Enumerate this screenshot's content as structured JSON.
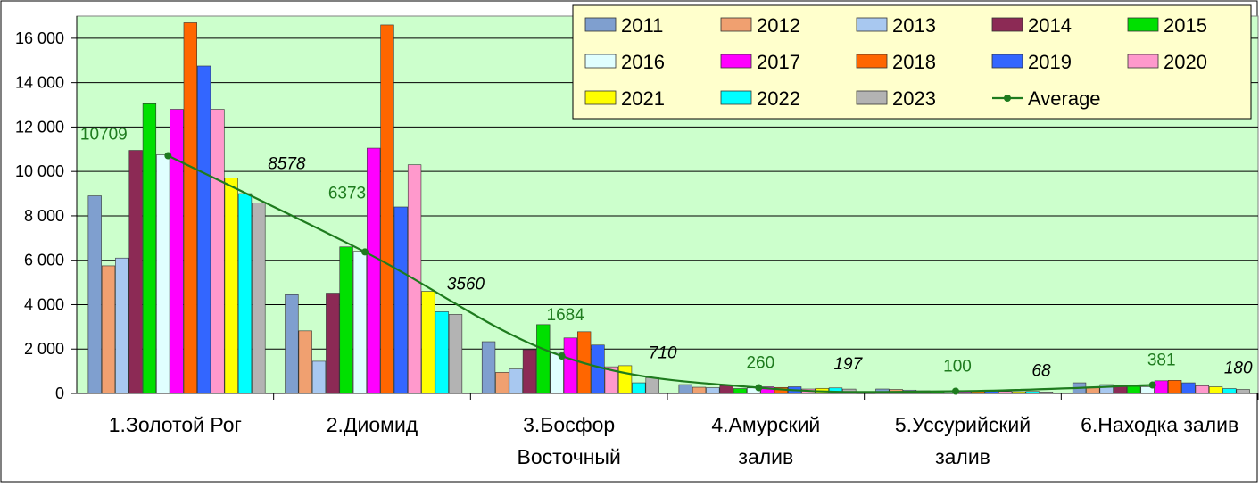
{
  "chart_data": {
    "type": "bar",
    "title": "",
    "xlabel": "",
    "ylabel": "",
    "ylim": [
      0,
      17000
    ],
    "yticks": [
      0,
      2000,
      4000,
      6000,
      8000,
      10000,
      12000,
      14000,
      16000
    ],
    "ytick_labels": [
      "0",
      "2 000",
      "4 000",
      "6 000",
      "8 000",
      "10 000",
      "12 000",
      "14 000",
      "16 000"
    ],
    "grid": true,
    "legend_position": "top-right",
    "categories": [
      [
        "1.Золотой  Рог"
      ],
      [
        "2.Диомид"
      ],
      [
        "3.Босфор",
        "Восточный"
      ],
      [
        "4.Амурский",
        "залив"
      ],
      [
        "5.Уссурийский",
        "залив"
      ],
      [
        "6.Находка  залив"
      ]
    ],
    "series": [
      {
        "name": "2011",
        "color": "#7f9fcf",
        "values": [
          8900,
          4450,
          2330,
          400,
          200,
          480
        ]
      },
      {
        "name": "2012",
        "color": "#f0a070",
        "values": [
          5750,
          2820,
          950,
          280,
          180,
          290
        ]
      },
      {
        "name": "2013",
        "color": "#a8c8f0",
        "values": [
          6100,
          1450,
          1100,
          260,
          150,
          400
        ]
      },
      {
        "name": "2014",
        "color": "#8c2a55",
        "values": [
          10950,
          4520,
          1970,
          350,
          120,
          380
        ]
      },
      {
        "name": "2015",
        "color": "#00e000",
        "values": [
          13050,
          6600,
          3100,
          220,
          90,
          320
        ]
      },
      {
        "name": "2016",
        "color": "#e0ffff",
        "values": [
          10750,
          6400,
          1850,
          250,
          80,
          300
        ]
      },
      {
        "name": "2017",
        "color": "#ff00ff",
        "values": [
          12800,
          11050,
          2500,
          300,
          100,
          570
        ]
      },
      {
        "name": "2018",
        "color": "#ff6600",
        "values": [
          16700,
          16600,
          2780,
          270,
          110,
          590
        ]
      },
      {
        "name": "2019",
        "color": "#3366ff",
        "values": [
          14750,
          8400,
          2180,
          300,
          120,
          480
        ]
      },
      {
        "name": "2020",
        "color": "#ff99cc",
        "values": [
          12800,
          10300,
          1200,
          200,
          90,
          350
        ]
      },
      {
        "name": "2021",
        "color": "#ffff00",
        "values": [
          9700,
          4600,
          1250,
          230,
          80,
          300
        ]
      },
      {
        "name": "2022",
        "color": "#00ffff",
        "values": [
          9000,
          3680,
          480,
          250,
          90,
          220
        ]
      },
      {
        "name": "2023",
        "color": "#b3b3b3",
        "values": [
          8578,
          3560,
          710,
          197,
          68,
          180
        ]
      }
    ],
    "average": {
      "name": "Average",
      "color": "#1e7b1e",
      "values": [
        10709,
        6373,
        1684,
        260,
        100,
        381
      ],
      "labels": [
        "10709",
        "6373",
        "1684",
        "260",
        "100",
        "381"
      ]
    },
    "annotations_2023": [
      "8578",
      "3560",
      "710",
      "197",
      "68",
      "180"
    ]
  }
}
